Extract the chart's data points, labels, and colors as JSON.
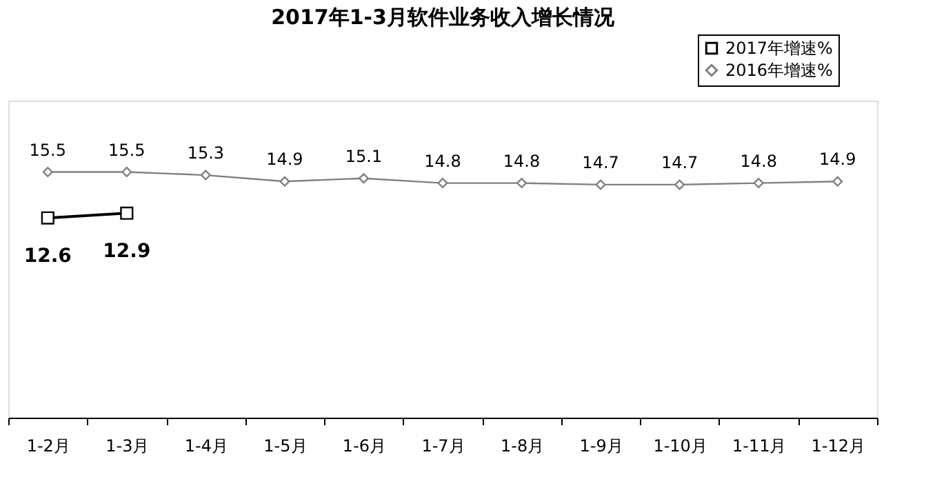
{
  "chart_data": {
    "type": "line",
    "title": "2017年1-3月软件业务收入增长情况",
    "categories": [
      "1-2月",
      "1-3月",
      "1-4月",
      "1-5月",
      "1-6月",
      "1-7月",
      "1-8月",
      "1-9月",
      "1-10月",
      "1-11月",
      "1-12月"
    ],
    "series": [
      {
        "name": "2017年增速%",
        "color": "#000000",
        "marker": "square",
        "values": [
          12.6,
          12.9,
          null,
          null,
          null,
          null,
          null,
          null,
          null,
          null,
          null
        ]
      },
      {
        "name": "2016年增速%",
        "color": "#808080",
        "marker": "diamond",
        "values": [
          15.5,
          15.5,
          15.3,
          14.9,
          15.1,
          14.8,
          14.8,
          14.7,
          14.7,
          14.8,
          14.9
        ]
      }
    ],
    "ylim": [
      0,
      20
    ],
    "data_labels": true,
    "legend": "top right",
    "grid": false
  }
}
